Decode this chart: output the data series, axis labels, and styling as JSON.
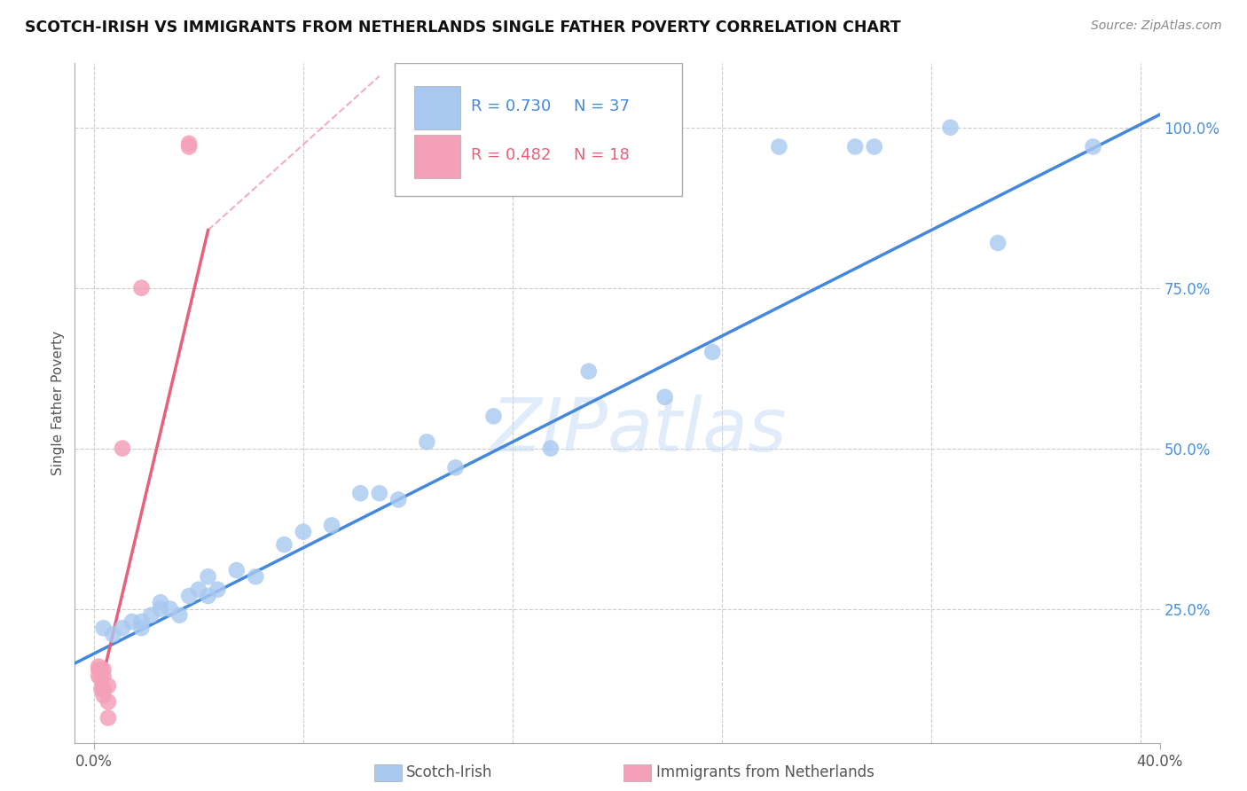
{
  "title": "SCOTCH-IRISH VS IMMIGRANTS FROM NETHERLANDS SINGLE FATHER POVERTY CORRELATION CHART",
  "source": "Source: ZipAtlas.com",
  "ylabel": "Single Father Poverty",
  "blue_R": 0.73,
  "blue_N": 37,
  "pink_R": 0.482,
  "pink_N": 18,
  "blue_color": "#A8C8F0",
  "pink_color": "#F4A0B8",
  "blue_line_color": "#4488DD",
  "pink_line_color": "#E8607A",
  "watermark_text": "ZIPatlas",
  "blue_points": [
    [
      0.001,
      0.22
    ],
    [
      0.002,
      0.21
    ],
    [
      0.003,
      0.22
    ],
    [
      0.004,
      0.23
    ],
    [
      0.005,
      0.22
    ],
    [
      0.005,
      0.23
    ],
    [
      0.006,
      0.24
    ],
    [
      0.007,
      0.25
    ],
    [
      0.007,
      0.26
    ],
    [
      0.008,
      0.25
    ],
    [
      0.009,
      0.24
    ],
    [
      0.01,
      0.27
    ],
    [
      0.011,
      0.28
    ],
    [
      0.012,
      0.3
    ],
    [
      0.012,
      0.27
    ],
    [
      0.013,
      0.28
    ],
    [
      0.015,
      0.31
    ],
    [
      0.017,
      0.3
    ],
    [
      0.02,
      0.35
    ],
    [
      0.022,
      0.37
    ],
    [
      0.025,
      0.38
    ],
    [
      0.028,
      0.43
    ],
    [
      0.03,
      0.43
    ],
    [
      0.032,
      0.42
    ],
    [
      0.035,
      0.51
    ],
    [
      0.038,
      0.47
    ],
    [
      0.042,
      0.55
    ],
    [
      0.048,
      0.5
    ],
    [
      0.052,
      0.62
    ],
    [
      0.06,
      0.58
    ],
    [
      0.065,
      0.65
    ],
    [
      0.072,
      0.97
    ],
    [
      0.08,
      0.97
    ],
    [
      0.082,
      0.97
    ],
    [
      0.09,
      1.0
    ],
    [
      0.095,
      0.82
    ],
    [
      0.105,
      0.97
    ]
  ],
  "pink_points": [
    [
      0.0005,
      0.155
    ],
    [
      0.0005,
      0.145
    ],
    [
      0.0005,
      0.16
    ],
    [
      0.0008,
      0.15
    ],
    [
      0.0008,
      0.155
    ],
    [
      0.0008,
      0.14
    ],
    [
      0.0008,
      0.125
    ],
    [
      0.001,
      0.145
    ],
    [
      0.001,
      0.155
    ],
    [
      0.001,
      0.125
    ],
    [
      0.001,
      0.115
    ],
    [
      0.0015,
      0.13
    ],
    [
      0.0015,
      0.105
    ],
    [
      0.0015,
      0.08
    ],
    [
      0.01,
      0.97
    ],
    [
      0.01,
      0.975
    ],
    [
      0.005,
      0.75
    ],
    [
      0.003,
      0.5
    ]
  ],
  "xlim": [
    -0.002,
    0.112
  ],
  "ylim": [
    0.04,
    1.1
  ],
  "xticks": [
    0.0,
    0.112
  ],
  "xticklabels": [
    "0.0%",
    "40.0%"
  ],
  "yticks": [
    0.25,
    0.5,
    0.75,
    1.0
  ],
  "yticklabels": [
    "25.0%",
    "50.0%",
    "75.0%",
    "100.0%"
  ],
  "xgrid": [
    0.0,
    0.022,
    0.044,
    0.066,
    0.088,
    0.11
  ],
  "ygrid": [
    0.25,
    0.5,
    0.75,
    1.0
  ],
  "blue_line": {
    "x0": -0.002,
    "y0": 0.165,
    "x1": 0.112,
    "y1": 1.02
  },
  "pink_line_solid": {
    "x0": 0.0008,
    "y0": 0.135,
    "x1": 0.012,
    "y1": 0.84
  },
  "pink_line_dashed": {
    "x0": 0.012,
    "y0": 0.84,
    "x1": 0.03,
    "y1": 1.08
  }
}
